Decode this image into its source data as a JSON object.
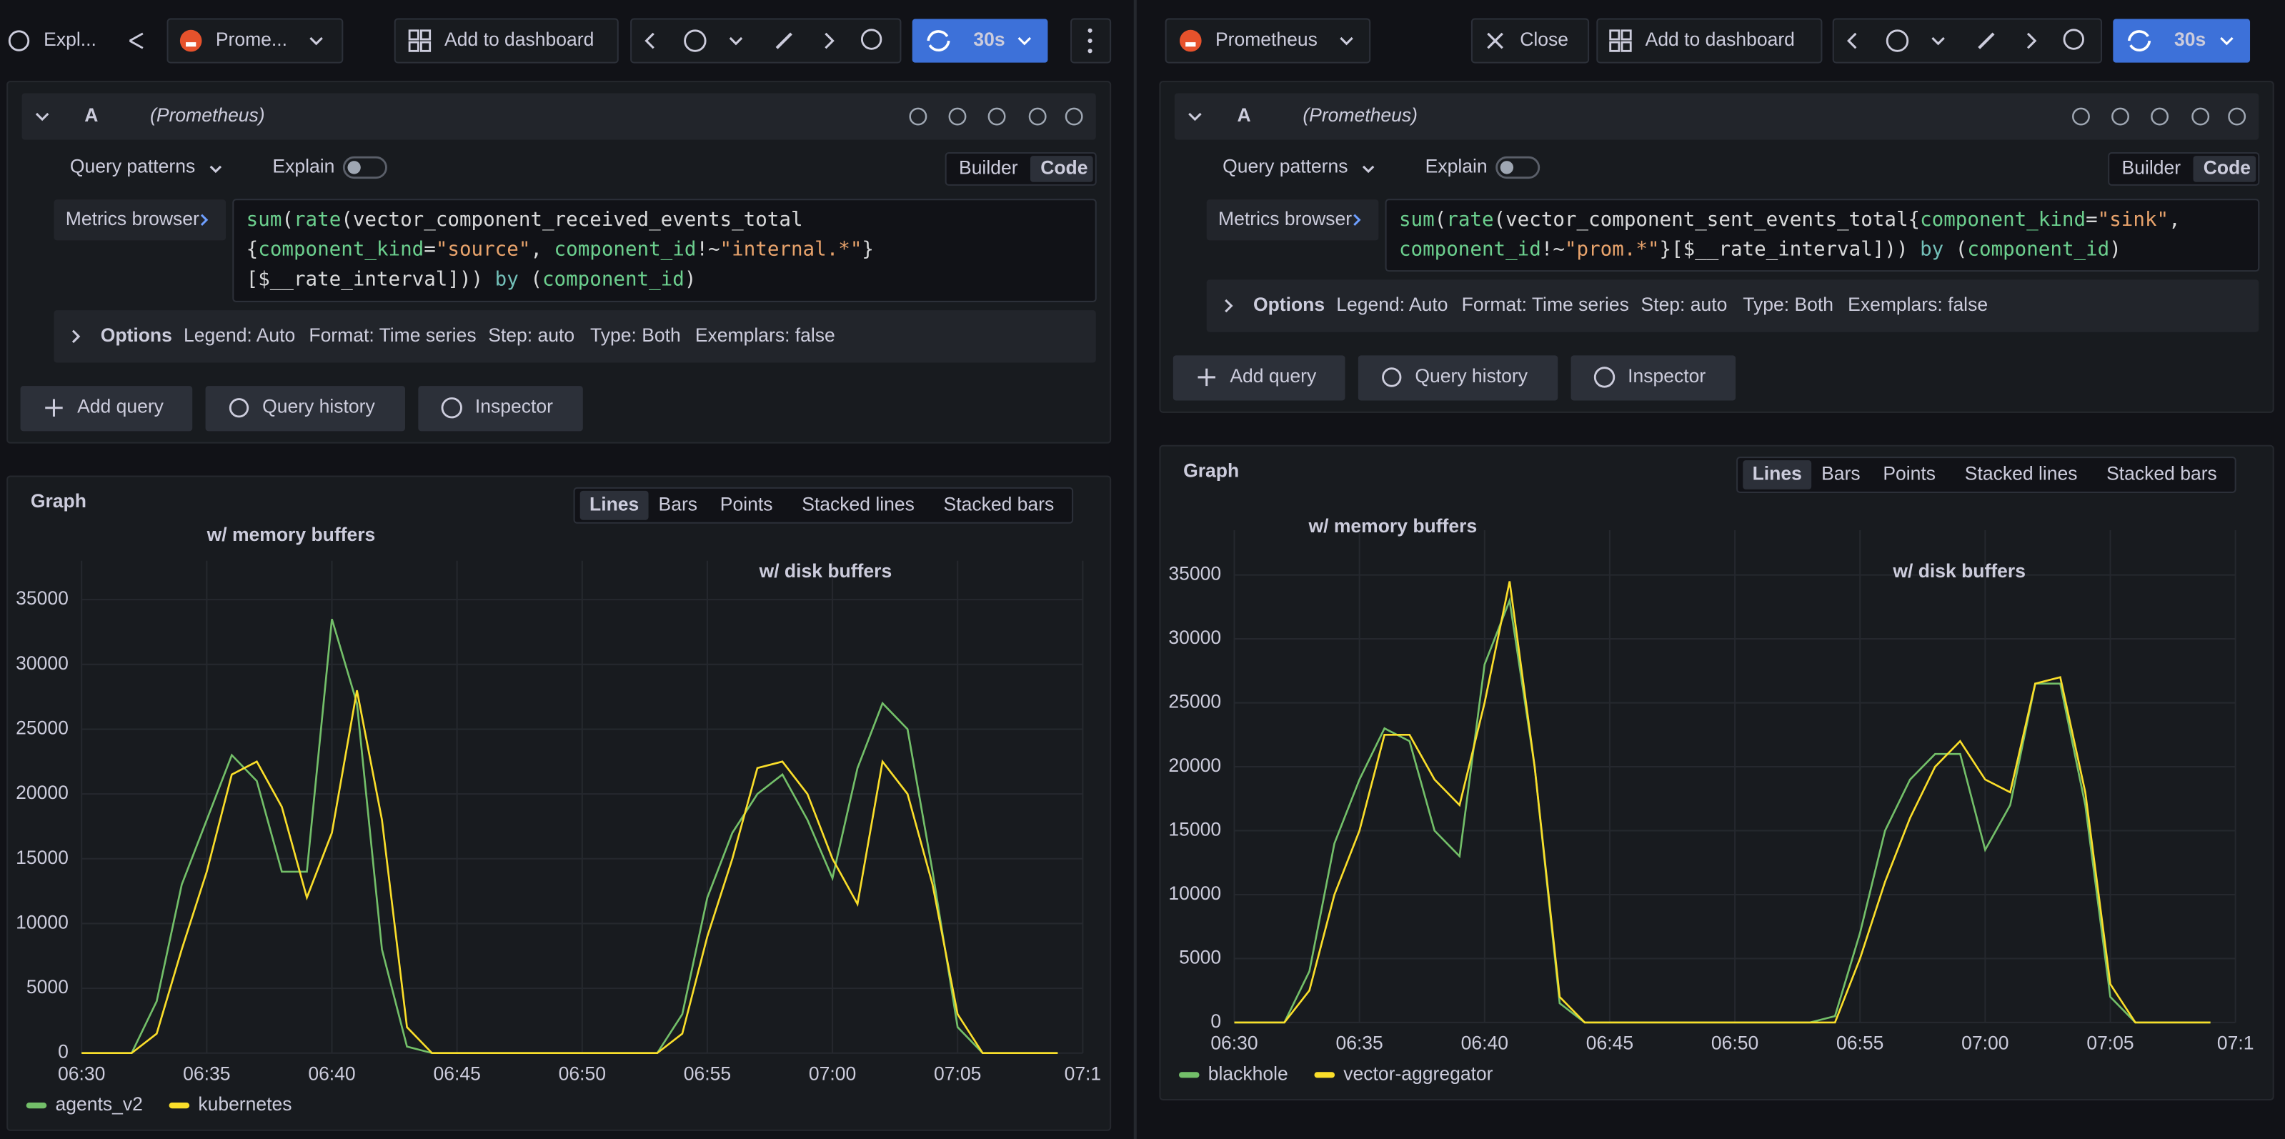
{
  "panes": [
    {
      "toolbar": {
        "title": "Expl...",
        "datasource": "Prome...",
        "add": "Add to dashboard",
        "refresh": "30s"
      },
      "query": {
        "letter": "A",
        "datasource": "(Prometheus)",
        "patterns": "Query patterns",
        "explain": "Explain",
        "builder": "Builder",
        "code": "Code",
        "metrics": "Metrics browser",
        "code_lines": [
          [
            {
              "text": "sum",
              "color": "#6ccf8e"
            },
            {
              "text": "(",
              "color": "#d8d9da"
            },
            {
              "text": "rate",
              "color": "#6ccf8e"
            },
            {
              "text": "(vector_component_received_events_total",
              "color": "#d8d9da"
            }
          ],
          [
            {
              "text": "{",
              "color": "#d8d9da"
            },
            {
              "text": "component_kind",
              "color": "#6ccf8e"
            },
            {
              "text": "=",
              "color": "#d8d9da"
            },
            {
              "text": "\"source\"",
              "color": "#e8a36c"
            },
            {
              "text": ", ",
              "color": "#d8d9da"
            },
            {
              "text": "component_id",
              "color": "#6ccf8e"
            },
            {
              "text": "!~",
              "color": "#d8d9da"
            },
            {
              "text": "\"internal.*\"",
              "color": "#e8a36c"
            },
            {
              "text": "}",
              "color": "#d8d9da"
            }
          ],
          [
            {
              "text": "[$__rate_interval])) ",
              "color": "#d8d9da"
            },
            {
              "text": "by",
              "color": "#73bfb8"
            },
            {
              "text": " (",
              "color": "#d8d9da"
            },
            {
              "text": "component_id",
              "color": "#6ccf8e"
            },
            {
              "text": ")",
              "color": "#d8d9da"
            }
          ]
        ],
        "options": [
          "Options",
          "Legend: Auto",
          "Format: Time series",
          "Step: auto",
          "Type: Both",
          "Exemplars: false"
        ]
      },
      "buttons": [
        "Add query",
        "Query history",
        "Inspector"
      ],
      "graph": {
        "title": "Graph",
        "viz": [
          "Lines",
          "Bars",
          "Points",
          "Stacked lines",
          "Stacked bars"
        ],
        "selected": 0
      }
    },
    {
      "toolbar": {
        "datasource": "Prometheus",
        "close": "Close",
        "add": "Add to dashboard",
        "refresh": "30s"
      },
      "query": {
        "letter": "A",
        "datasource": "(Prometheus)",
        "patterns": "Query patterns",
        "explain": "Explain",
        "builder": "Builder",
        "code": "Code",
        "metrics": "Metrics browser",
        "code_lines": [
          [
            {
              "text": "sum",
              "color": "#6ccf8e"
            },
            {
              "text": "(",
              "color": "#d8d9da"
            },
            {
              "text": "rate",
              "color": "#6ccf8e"
            },
            {
              "text": "(vector_component_sent_events_total{",
              "color": "#d8d9da"
            },
            {
              "text": "component_kind",
              "color": "#6ccf8e"
            },
            {
              "text": "=",
              "color": "#d8d9da"
            },
            {
              "text": "\"sink\"",
              "color": "#e8a36c"
            },
            {
              "text": ",",
              "color": "#d8d9da"
            }
          ],
          [
            {
              "text": "component_id",
              "color": "#6ccf8e"
            },
            {
              "text": "!~",
              "color": "#d8d9da"
            },
            {
              "text": "\"prom.*\"",
              "color": "#e8a36c"
            },
            {
              "text": "}[$__rate_interval])) ",
              "color": "#d8d9da"
            },
            {
              "text": "by",
              "color": "#73bfb8"
            },
            {
              "text": " (",
              "color": "#d8d9da"
            },
            {
              "text": "component_id",
              "color": "#6ccf8e"
            },
            {
              "text": ")",
              "color": "#d8d9da"
            }
          ]
        ],
        "options": [
          "Options",
          "Legend: Auto",
          "Format: Time series",
          "Step: auto",
          "Type: Both",
          "Exemplars: false"
        ]
      },
      "buttons": [
        "Add query",
        "Query history",
        "Inspector"
      ],
      "graph": {
        "title": "Graph",
        "viz": [
          "Lines",
          "Bars",
          "Points",
          "Stacked lines",
          "Stacked bars"
        ],
        "selected": 0
      }
    }
  ],
  "chart_data": [
    {
      "type": "line",
      "annotations": [
        "w/ memory buffers",
        "w/ disk buffers"
      ],
      "annotation_color": "#e8412c",
      "x": [
        "06:30",
        "06:31",
        "06:32",
        "06:33",
        "06:34",
        "06:35",
        "06:36",
        "06:37",
        "06:38",
        "06:39",
        "06:40",
        "06:41",
        "06:42",
        "06:43",
        "06:44",
        "06:45",
        "06:46",
        "06:47",
        "06:48",
        "06:49",
        "06:50",
        "06:51",
        "06:52",
        "06:53",
        "06:54",
        "06:55",
        "06:56",
        "06:57",
        "06:58",
        "06:59",
        "07:00",
        "07:01",
        "07:02",
        "07:03",
        "07:04",
        "07:05",
        "07:06",
        "07:07",
        "07:08",
        "07:09"
      ],
      "xlim": [
        "06:30",
        "07:10"
      ],
      "xticks": [
        "06:30",
        "06:35",
        "06:40",
        "06:45",
        "06:50",
        "06:55",
        "07:00",
        "07:05",
        {
          "value": "07:10",
          "label": "07:1"
        }
      ],
      "ylim": [
        0,
        38000
      ],
      "yticks": [
        0,
        5000,
        10000,
        15000,
        20000,
        25000,
        30000,
        35000
      ],
      "grid": true,
      "legend": "bottom",
      "series": [
        {
          "name": "agents_v2",
          "color": "#73bf69",
          "values": [
            0,
            0,
            0,
            4000,
            13000,
            18000,
            23000,
            21000,
            14000,
            14000,
            33500,
            27000,
            8000,
            500,
            0,
            0,
            0,
            0,
            0,
            0,
            0,
            0,
            0,
            0,
            3000,
            12000,
            17000,
            20000,
            21500,
            18000,
            13500,
            22000,
            27000,
            25000,
            14000,
            2000,
            0,
            0,
            0,
            0
          ]
        },
        {
          "name": "kubernetes",
          "color": "#fade2a",
          "values": [
            0,
            0,
            0,
            1500,
            8000,
            14000,
            21500,
            22500,
            19000,
            12000,
            17000,
            28000,
            18000,
            2000,
            0,
            0,
            0,
            0,
            0,
            0,
            0,
            0,
            0,
            0,
            1500,
            9000,
            15000,
            22000,
            22500,
            20000,
            15000,
            11500,
            22500,
            20000,
            13000,
            3000,
            0,
            0,
            0,
            0
          ]
        }
      ]
    },
    {
      "type": "line",
      "annotations": [
        "w/ memory buffers",
        "w/ disk buffers"
      ],
      "annotation_color": "#e8412c",
      "x": [
        "06:30",
        "06:31",
        "06:32",
        "06:33",
        "06:34",
        "06:35",
        "06:36",
        "06:37",
        "06:38",
        "06:39",
        "06:40",
        "06:41",
        "06:42",
        "06:43",
        "06:44",
        "06:45",
        "06:46",
        "06:47",
        "06:48",
        "06:49",
        "06:50",
        "06:51",
        "06:52",
        "06:53",
        "06:54",
        "06:55",
        "06:56",
        "06:57",
        "06:58",
        "06:59",
        "07:00",
        "07:01",
        "07:02",
        "07:03",
        "07:04",
        "07:05",
        "07:06",
        "07:07",
        "07:08",
        "07:09"
      ],
      "xlim": [
        "06:30",
        "07:10"
      ],
      "xticks": [
        "06:30",
        "06:35",
        "06:40",
        "06:45",
        "06:50",
        "06:55",
        "07:00",
        "07:05",
        {
          "value": "07:10",
          "label": "07:1"
        }
      ],
      "ylim": [
        0,
        38500
      ],
      "yticks": [
        0,
        5000,
        10000,
        15000,
        20000,
        25000,
        30000,
        35000
      ],
      "grid": true,
      "legend": "bottom",
      "series": [
        {
          "name": "blackhole",
          "color": "#73bf69",
          "values": [
            0,
            0,
            0,
            4000,
            14000,
            19000,
            23000,
            22000,
            15000,
            13000,
            28000,
            33000,
            20000,
            1500,
            0,
            0,
            0,
            0,
            0,
            0,
            0,
            0,
            0,
            0,
            500,
            7000,
            15000,
            19000,
            21000,
            21000,
            13500,
            17000,
            26500,
            26500,
            17000,
            2000,
            0,
            0,
            0,
            0
          ]
        },
        {
          "name": "vector-aggregator",
          "color": "#fade2a",
          "values": [
            0,
            0,
            0,
            2500,
            10000,
            15000,
            22500,
            22500,
            19000,
            17000,
            25000,
            34500,
            20000,
            2000,
            0,
            0,
            0,
            0,
            0,
            0,
            0,
            0,
            0,
            0,
            0,
            5000,
            11000,
            16000,
            20000,
            22000,
            19000,
            18000,
            26500,
            27000,
            18000,
            3000,
            0,
            0,
            0,
            0
          ]
        }
      ]
    }
  ]
}
